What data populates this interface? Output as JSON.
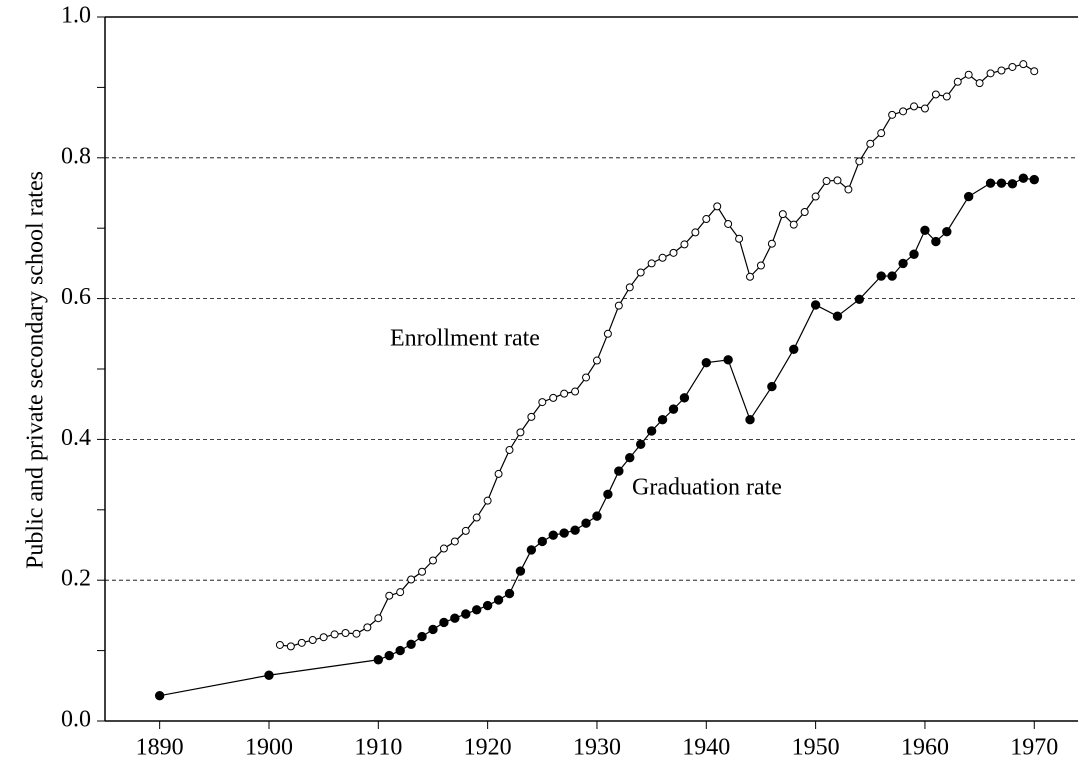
{
  "chart_data": {
    "type": "line",
    "y_label": "Public and private secondary school rates",
    "annotations": [
      "Enrollment rate",
      "Graduation rate"
    ],
    "xlim": [
      1885,
      1974
    ],
    "xticks": [
      1890,
      1900,
      1910,
      1920,
      1930,
      1940,
      1950,
      1960,
      1970
    ],
    "ylim": [
      0,
      1
    ],
    "yticks": [
      {
        "value": 0,
        "label": "0.0"
      },
      {
        "value": 0.2,
        "label": "0.2"
      },
      {
        "value": 0.4,
        "label": "0.4"
      },
      {
        "value": 0.6,
        "label": "0.6"
      },
      {
        "value": 0.8,
        "label": "0.8"
      },
      {
        "value": 1,
        "label": "1.0"
      }
    ],
    "minor_yticks": [
      0.1,
      0.3,
      0.5,
      0.7,
      0.9
    ],
    "grid": true,
    "series": [
      {
        "color": "#000000",
        "marker": "open",
        "x": [
          1901,
          1902,
          1903,
          1904,
          1905,
          1906,
          1907,
          1908,
          1909,
          1910,
          1911,
          1912,
          1913,
          1914,
          1915,
          1916,
          1917,
          1918,
          1919,
          1920,
          1921,
          1922,
          1923,
          1924,
          1925,
          1926,
          1927,
          1928,
          1929,
          1930,
          1931,
          1932,
          1933,
          1934,
          1935,
          1936,
          1937,
          1938,
          1939,
          1940,
          1941,
          1942,
          1943,
          1944,
          1945,
          1946,
          1947,
          1948,
          1949,
          1950,
          1951,
          1952,
          1953,
          1954,
          1955,
          1956,
          1957,
          1958,
          1959,
          1960,
          1961,
          1962,
          1963,
          1964,
          1965,
          1966,
          1967,
          1968,
          1969,
          1970
        ],
        "values": [
          0.108,
          0.106,
          0.111,
          0.115,
          0.119,
          0.123,
          0.125,
          0.124,
          0.133,
          0.146,
          0.178,
          0.183,
          0.201,
          0.212,
          0.228,
          0.245,
          0.255,
          0.27,
          0.289,
          0.313,
          0.351,
          0.385,
          0.41,
          0.432,
          0.453,
          0.459,
          0.465,
          0.468,
          0.488,
          0.512,
          0.55,
          0.59,
          0.616,
          0.637,
          0.65,
          0.658,
          0.665,
          0.677,
          0.694,
          0.713,
          0.731,
          0.706,
          0.685,
          0.631,
          0.647,
          0.678,
          0.72,
          0.705,
          0.723,
          0.745,
          0.767,
          0.768,
          0.755,
          0.795,
          0.82,
          0.835,
          0.861,
          0.866,
          0.873,
          0.87,
          0.89,
          0.887,
          0.908,
          0.918,
          0.906,
          0.92,
          0.924,
          0.929,
          0.933,
          0.923
        ]
      },
      {
        "color": "#000000",
        "marker": "filled",
        "x": [
          1890,
          1900,
          1910,
          1911,
          1912,
          1913,
          1914,
          1915,
          1916,
          1917,
          1918,
          1919,
          1920,
          1921,
          1922,
          1923,
          1924,
          1925,
          1926,
          1927,
          1928,
          1929,
          1930,
          1931,
          1932,
          1933,
          1934,
          1935,
          1936,
          1937,
          1938,
          1940,
          1942,
          1944,
          1946,
          1948,
          1950,
          1952,
          1954,
          1956,
          1957,
          1958,
          1959,
          1960,
          1961,
          1962,
          1964,
          1966,
          1967,
          1968,
          1969,
          1970
        ],
        "values": [
          0.036,
          0.065,
          0.087,
          0.093,
          0.1,
          0.109,
          0.12,
          0.13,
          0.14,
          0.146,
          0.152,
          0.158,
          0.164,
          0.172,
          0.181,
          0.213,
          0.243,
          0.255,
          0.264,
          0.267,
          0.271,
          0.281,
          0.291,
          0.322,
          0.355,
          0.374,
          0.393,
          0.412,
          0.428,
          0.443,
          0.459,
          0.509,
          0.513,
          0.428,
          0.475,
          0.528,
          0.591,
          0.575,
          0.599,
          0.632,
          0.632,
          0.65,
          0.663,
          0.697,
          0.681,
          0.695,
          0.745,
          0.764,
          0.764,
          0.763,
          0.771,
          0.769
        ]
      }
    ]
  }
}
